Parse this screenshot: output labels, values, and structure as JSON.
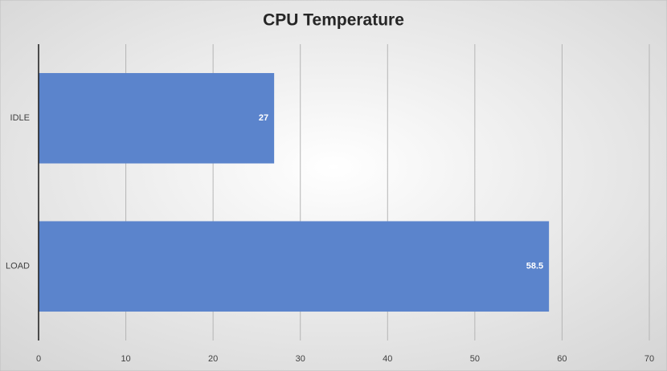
{
  "chart_data": {
    "type": "hbar",
    "title": "CPU Temperature",
    "categories": [
      "IDLE",
      "LOAD"
    ],
    "values": [
      27,
      58.5
    ],
    "color": "#5b84cc",
    "xlim": [
      0,
      70
    ],
    "xticks": [
      0,
      10,
      20,
      30,
      40,
      50,
      60,
      70
    ],
    "grid": true
  }
}
